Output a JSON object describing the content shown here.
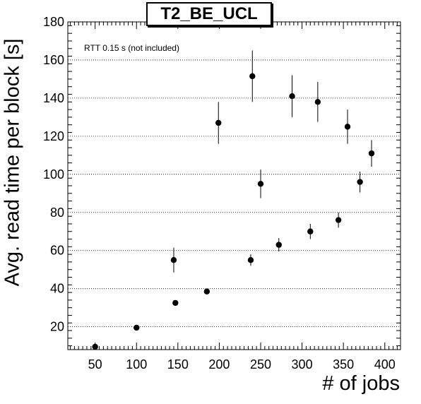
{
  "chart_data": {
    "type": "scatter",
    "title": "T2_BE_UCL",
    "xlabel": "# of jobs",
    "ylabel": "Avg. read time per block [s]",
    "annotation": "RTT 0.15 s (not included)",
    "xlim": [
      17,
      419
    ],
    "ylim": [
      8,
      180
    ],
    "xticks": [
      50,
      100,
      150,
      200,
      250,
      300,
      350,
      400
    ],
    "yticks": [
      20,
      40,
      60,
      80,
      100,
      120,
      140,
      160,
      180
    ],
    "grid": {
      "horizontal": true,
      "vertical": false,
      "style": "dotted"
    },
    "points": [
      {
        "x": 50,
        "y": 9.5,
        "err": 0
      },
      {
        "x": 100,
        "y": 19.5,
        "err": 0
      },
      {
        "x": 145,
        "y": 55,
        "err": 6.5
      },
      {
        "x": 147,
        "y": 32.5,
        "err": 0
      },
      {
        "x": 185,
        "y": 38.5,
        "err": 0
      },
      {
        "x": 199,
        "y": 127,
        "err": 11
      },
      {
        "x": 238,
        "y": 55,
        "err": 3
      },
      {
        "x": 240,
        "y": 151.5,
        "err": 13.5
      },
      {
        "x": 250,
        "y": 95,
        "err": 7.5
      },
      {
        "x": 272,
        "y": 63,
        "err": 3.5
      },
      {
        "x": 288,
        "y": 141,
        "err": 11
      },
      {
        "x": 310,
        "y": 70,
        "err": 4
      },
      {
        "x": 319,
        "y": 138,
        "err": 10.5
      },
      {
        "x": 344,
        "y": 76,
        "err": 4
      },
      {
        "x": 355,
        "y": 125,
        "err": 9
      },
      {
        "x": 370,
        "y": 96,
        "err": 5.5
      },
      {
        "x": 384,
        "y": 111,
        "err": 7
      }
    ]
  }
}
